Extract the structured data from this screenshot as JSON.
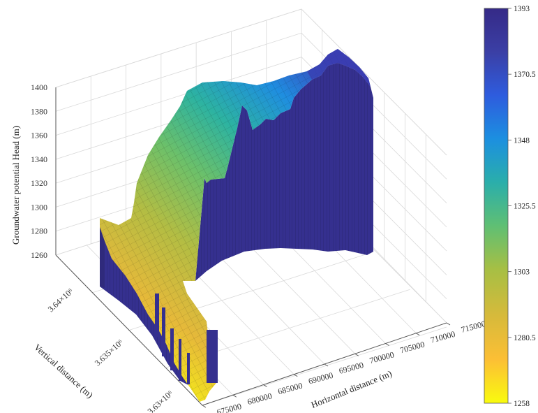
{
  "chart_data": {
    "type": "surface",
    "title": "",
    "xlabel": "Horizontal distance (m)",
    "ylabel": "Vertical distance (m)",
    "zlabel": "Groundwater potential Head (m)",
    "x_ticks": [
      "675000",
      "680000",
      "685000",
      "690000",
      "695000",
      "700000",
      "705000",
      "710000",
      "715000"
    ],
    "y_ticks": [
      "3.63×10⁶",
      "3.635×10⁶",
      "3.64×10⁶"
    ],
    "z_ticks": [
      "1260",
      "1280",
      "1300",
      "1320",
      "1340",
      "1360",
      "1380",
      "1400"
    ],
    "colorbar_ticks": [
      "1393",
      "1370.5",
      "1348",
      "1325.5",
      "1303",
      "1280.5",
      "1258"
    ],
    "colorbar_range": [
      1258,
      1393
    ],
    "colormap": [
      "#f9fb0e",
      "#fcbf35",
      "#d7ba3b",
      "#a6bf44",
      "#5fbf74",
      "#2aaeab",
      "#1c8fe0",
      "#2e5cde",
      "#3b3fa5",
      "#352a87"
    ],
    "x_range": [
      675000,
      715000
    ],
    "y_range": [
      3628000,
      3643000
    ],
    "z_range": [
      1250,
      1400
    ],
    "grid": true,
    "surface_head_profile": [
      {
        "x": 676000,
        "y": 3628500,
        "head": 1258
      },
      {
        "x": 677000,
        "y": 3630000,
        "head": 1268
      },
      {
        "x": 678000,
        "y": 3632000,
        "head": 1280
      },
      {
        "x": 679000,
        "y": 3634000,
        "head": 1290
      },
      {
        "x": 681000,
        "y": 3636000,
        "head": 1300
      },
      {
        "x": 683000,
        "y": 3638000,
        "head": 1312
      },
      {
        "x": 686000,
        "y": 3640000,
        "head": 1325
      },
      {
        "x": 690000,
        "y": 3641500,
        "head": 1340
      },
      {
        "x": 695000,
        "y": 3642000,
        "head": 1355
      },
      {
        "x": 700000,
        "y": 3642500,
        "head": 1368
      },
      {
        "x": 706000,
        "y": 3643000,
        "head": 1380
      },
      {
        "x": 712000,
        "y": 3643000,
        "head": 1393
      }
    ]
  }
}
